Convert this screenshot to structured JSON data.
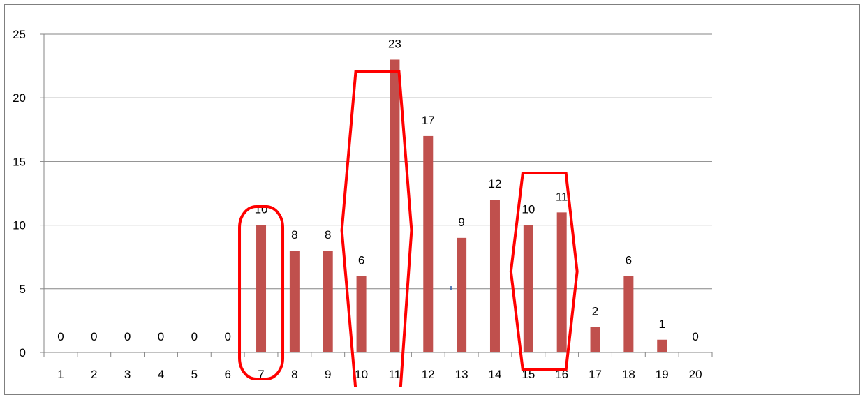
{
  "chart_data": {
    "type": "bar",
    "categories": [
      "1",
      "2",
      "3",
      "4",
      "5",
      "6",
      "7",
      "8",
      "9",
      "10",
      "11",
      "12",
      "13",
      "14",
      "15",
      "16",
      "17",
      "18",
      "19",
      "20"
    ],
    "values": [
      0,
      0,
      0,
      0,
      0,
      0,
      10,
      8,
      8,
      6,
      23,
      17,
      9,
      12,
      10,
      11,
      2,
      6,
      1,
      0
    ],
    "ylim": [
      0,
      25
    ],
    "yticks": [
      0,
      5,
      10,
      15,
      20,
      25
    ],
    "grid": true,
    "legend": "none",
    "data_labels": true,
    "colors": {
      "bar": "#c0504d",
      "grid": "#868686",
      "annotation": "#ff0000",
      "frame": "#7f7f7f"
    }
  },
  "annotations": {
    "description_shapes": [
      "rounded-rect-around-7",
      "hexagon-around-10-11",
      "hexagon-around-15-16"
    ]
  }
}
